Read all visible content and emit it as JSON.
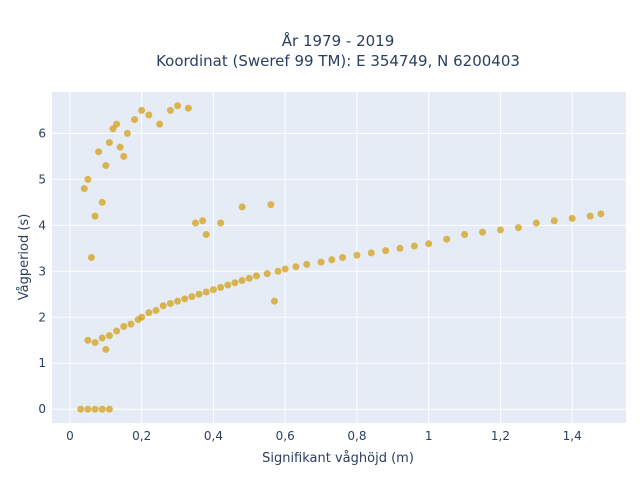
{
  "chart_data": {
    "type": "scatter",
    "title_line1": "År 1979 - 2019",
    "title_line2": "Koordinat (Sweref 99 TM): E 354749, N 6200403",
    "xlabel": "Signifikant våghöjd (m)",
    "ylabel": "Vågperiod (s)",
    "xlim": [
      -0.05,
      1.55
    ],
    "ylim": [
      -0.3,
      6.9
    ],
    "x_ticks": [
      {
        "value": 0,
        "label": "0"
      },
      {
        "value": 0.2,
        "label": "0,2"
      },
      {
        "value": 0.4,
        "label": "0,4"
      },
      {
        "value": 0.6,
        "label": "0,6"
      },
      {
        "value": 0.8,
        "label": "0,8"
      },
      {
        "value": 1.0,
        "label": "1"
      },
      {
        "value": 1.2,
        "label": "1,2"
      },
      {
        "value": 1.4,
        "label": "1,4"
      }
    ],
    "y_ticks": [
      {
        "value": 0,
        "label": "0"
      },
      {
        "value": 1,
        "label": "1"
      },
      {
        "value": 2,
        "label": "2"
      },
      {
        "value": 3,
        "label": "3"
      },
      {
        "value": 4,
        "label": "4"
      },
      {
        "value": 5,
        "label": "5"
      },
      {
        "value": 6,
        "label": "6"
      }
    ],
    "grid": true,
    "marker_color": "#d4a017",
    "plot_bg": "#e5ecf6",
    "series": [
      {
        "points": [
          [
            0.05,
            1.5
          ],
          [
            0.07,
            1.45
          ],
          [
            0.09,
            1.55
          ],
          [
            0.1,
            1.3
          ],
          [
            0.11,
            1.6
          ],
          [
            0.13,
            1.7
          ],
          [
            0.15,
            1.8
          ],
          [
            0.17,
            1.85
          ],
          [
            0.19,
            1.95
          ],
          [
            0.2,
            2.0
          ],
          [
            0.22,
            2.1
          ],
          [
            0.24,
            2.15
          ],
          [
            0.26,
            2.25
          ],
          [
            0.28,
            2.3
          ],
          [
            0.3,
            2.35
          ],
          [
            0.32,
            2.4
          ],
          [
            0.34,
            2.45
          ],
          [
            0.36,
            2.5
          ],
          [
            0.38,
            2.55
          ],
          [
            0.4,
            2.6
          ],
          [
            0.42,
            2.65
          ],
          [
            0.44,
            2.7
          ],
          [
            0.46,
            2.75
          ],
          [
            0.48,
            2.8
          ],
          [
            0.5,
            2.85
          ],
          [
            0.52,
            2.9
          ],
          [
            0.55,
            2.95
          ],
          [
            0.58,
            3.0
          ],
          [
            0.6,
            3.05
          ],
          [
            0.63,
            3.1
          ],
          [
            0.66,
            3.15
          ],
          [
            0.7,
            3.2
          ],
          [
            0.73,
            3.25
          ],
          [
            0.76,
            3.3
          ],
          [
            0.8,
            3.35
          ],
          [
            0.84,
            3.4
          ],
          [
            0.88,
            3.45
          ],
          [
            0.92,
            3.5
          ],
          [
            0.96,
            3.55
          ],
          [
            1.0,
            3.6
          ],
          [
            1.05,
            3.7
          ],
          [
            1.1,
            3.8
          ],
          [
            1.15,
            3.85
          ],
          [
            1.2,
            3.9
          ],
          [
            1.25,
            3.95
          ],
          [
            1.3,
            4.05
          ],
          [
            1.35,
            4.1
          ],
          [
            1.4,
            4.15
          ],
          [
            1.45,
            4.2
          ],
          [
            1.48,
            4.25
          ],
          [
            0.04,
            4.8
          ],
          [
            0.05,
            5.0
          ],
          [
            0.06,
            3.3
          ],
          [
            0.07,
            4.2
          ],
          [
            0.08,
            5.6
          ],
          [
            0.09,
            4.5
          ],
          [
            0.1,
            5.3
          ],
          [
            0.11,
            5.8
          ],
          [
            0.12,
            6.1
          ],
          [
            0.13,
            6.2
          ],
          [
            0.14,
            5.7
          ],
          [
            0.15,
            5.5
          ],
          [
            0.16,
            6.0
          ],
          [
            0.18,
            6.3
          ],
          [
            0.2,
            6.5
          ],
          [
            0.22,
            6.4
          ],
          [
            0.25,
            6.2
          ],
          [
            0.28,
            6.5
          ],
          [
            0.3,
            6.6
          ],
          [
            0.33,
            6.55
          ],
          [
            0.03,
            0.0
          ],
          [
            0.05,
            0.0
          ],
          [
            0.07,
            0.0
          ],
          [
            0.09,
            0.0
          ],
          [
            0.11,
            0.0
          ],
          [
            0.35,
            4.05
          ],
          [
            0.37,
            4.1
          ],
          [
            0.42,
            4.05
          ],
          [
            0.48,
            4.4
          ],
          [
            0.56,
            4.45
          ],
          [
            0.57,
            2.35
          ],
          [
            0.38,
            3.8
          ]
        ]
      }
    ]
  }
}
